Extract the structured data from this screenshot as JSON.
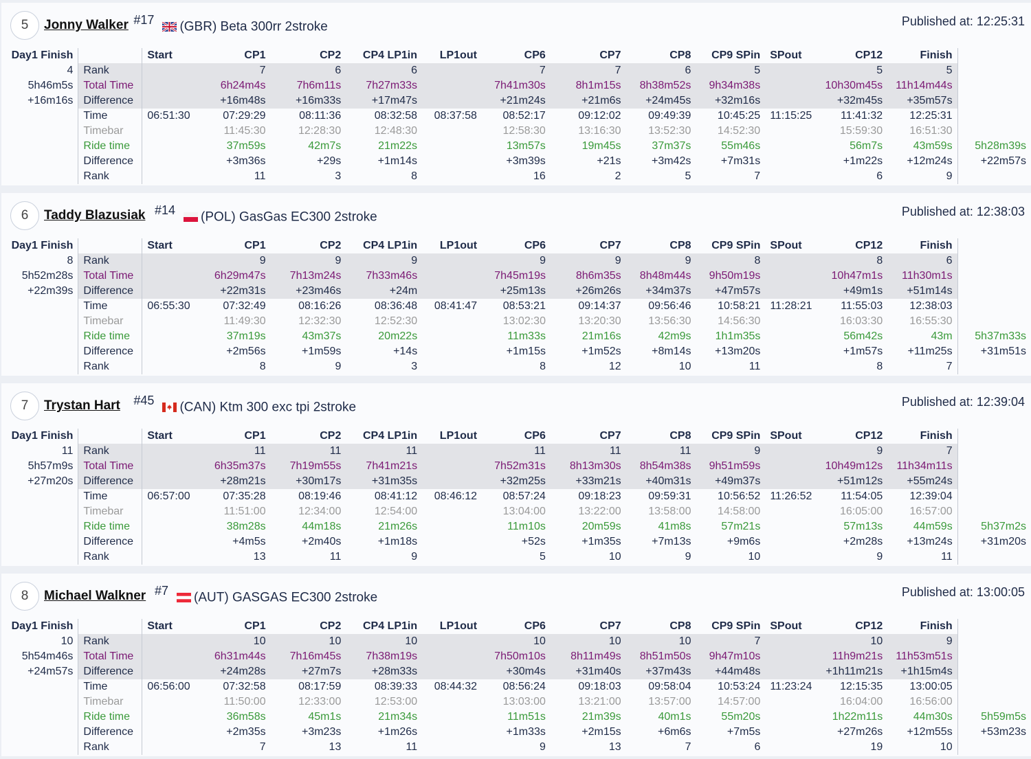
{
  "columns": [
    "Start",
    "CP1",
    "CP2",
    "CP4 LP1in",
    "LP1out",
    "CP6",
    "CP7",
    "CP8",
    "CP9 SPin",
    "SPout",
    "CP12",
    "Finish",
    ""
  ],
  "day1_header": "Day1 Finish",
  "published_label": "Published at: ",
  "row_labels": {
    "rank": "Rank",
    "total": "Total Time",
    "diff": "Difference",
    "time": "Time",
    "timebar": "Timebar",
    "ride": "Ride time",
    "diff2": "Difference",
    "rank2": "Rank"
  },
  "colors": {
    "purple": "#7b1a74",
    "green": "#3a9a3a",
    "grey": "#9a9a9a",
    "band": "#e2e3e7"
  },
  "riders": [
    {
      "position": "5",
      "name": "Jonny Walker",
      "number": "#17",
      "flag": "gb-flag-icon",
      "nation_bike": "(GBR) Beta 300rr 2stroke",
      "published": "12:25:31",
      "day1": [
        "4",
        "5h46m5s",
        "+16m16s"
      ],
      "rows": {
        "rank": [
          "",
          "7",
          "6",
          "6",
          "",
          "7",
          "7",
          "6",
          "5",
          "",
          "5",
          "5",
          ""
        ],
        "total": [
          "",
          "6h24m4s",
          "7h6m11s",
          "7h27m33s",
          "",
          "7h41m30s",
          "8h1m15s",
          "8h38m52s",
          "9h34m38s",
          "",
          "10h30m45s",
          "11h14m44s",
          ""
        ],
        "diff": [
          "",
          "+16m48s",
          "+16m33s",
          "+17m47s",
          "",
          "+21m24s",
          "+21m6s",
          "+24m45s",
          "+32m16s",
          "",
          "+32m45s",
          "+35m57s",
          ""
        ],
        "time": [
          "06:51:30",
          "07:29:29",
          "08:11:36",
          "08:32:58",
          "08:37:58",
          "08:52:17",
          "09:12:02",
          "09:49:39",
          "10:45:25",
          "11:15:25",
          "11:41:32",
          "12:25:31",
          ""
        ],
        "timebar": [
          "",
          "11:45:30",
          "12:28:30",
          "12:48:30",
          "",
          "12:58:30",
          "13:16:30",
          "13:52:30",
          "14:52:30",
          "",
          "15:59:30",
          "16:51:30",
          ""
        ],
        "ride": [
          "",
          "37m59s",
          "42m7s",
          "21m22s",
          "",
          "13m57s",
          "19m45s",
          "37m37s",
          "55m46s",
          "",
          "56m7s",
          "43m59s",
          "5h28m39s"
        ],
        "diff2": [
          "",
          "+3m36s",
          "+29s",
          "+1m14s",
          "",
          "+3m39s",
          "+21s",
          "+3m42s",
          "+7m31s",
          "",
          "+1m22s",
          "+12m24s",
          "+22m57s"
        ],
        "rank2": [
          "",
          "11",
          "3",
          "8",
          "",
          "16",
          "2",
          "5",
          "7",
          "",
          "6",
          "9",
          ""
        ]
      }
    },
    {
      "position": "6",
      "name": "Taddy Blazusiak",
      "number": "#14",
      "flag": "pl-flag-icon",
      "nation_bike": "(POL) GasGas EC300 2stroke",
      "published": "12:38:03",
      "day1": [
        "8",
        "5h52m28s",
        "+22m39s"
      ],
      "rows": {
        "rank": [
          "",
          "9",
          "9",
          "9",
          "",
          "9",
          "9",
          "9",
          "8",
          "",
          "8",
          "6",
          ""
        ],
        "total": [
          "",
          "6h29m47s",
          "7h13m24s",
          "7h33m46s",
          "",
          "7h45m19s",
          "8h6m35s",
          "8h48m44s",
          "9h50m19s",
          "",
          "10h47m1s",
          "11h30m1s",
          ""
        ],
        "diff": [
          "",
          "+22m31s",
          "+23m46s",
          "+24m",
          "",
          "+25m13s",
          "+26m26s",
          "+34m37s",
          "+47m57s",
          "",
          "+49m1s",
          "+51m14s",
          ""
        ],
        "time": [
          "06:55:30",
          "07:32:49",
          "08:16:26",
          "08:36:48",
          "08:41:47",
          "08:53:21",
          "09:14:37",
          "09:56:46",
          "10:58:21",
          "11:28:21",
          "11:55:03",
          "12:38:03",
          ""
        ],
        "timebar": [
          "",
          "11:49:30",
          "12:32:30",
          "12:52:30",
          "",
          "13:02:30",
          "13:20:30",
          "13:56:30",
          "14:56:30",
          "",
          "16:03:30",
          "16:55:30",
          ""
        ],
        "ride": [
          "",
          "37m19s",
          "43m37s",
          "20m22s",
          "",
          "11m33s",
          "21m16s",
          "42m9s",
          "1h1m35s",
          "",
          "56m42s",
          "43m",
          "5h37m33s"
        ],
        "diff2": [
          "",
          "+2m56s",
          "+1m59s",
          "+14s",
          "",
          "+1m15s",
          "+1m52s",
          "+8m14s",
          "+13m20s",
          "",
          "+1m57s",
          "+11m25s",
          "+31m51s"
        ],
        "rank2": [
          "",
          "8",
          "9",
          "3",
          "",
          "8",
          "12",
          "10",
          "11",
          "",
          "8",
          "7",
          ""
        ]
      }
    },
    {
      "position": "7",
      "name": "Trystan Hart",
      "number": "#45",
      "flag": "ca-flag-icon",
      "nation_bike": "(CAN) Ktm 300 exc tpi 2stroke",
      "published": "12:39:04",
      "day1": [
        "11",
        "5h57m9s",
        "+27m20s"
      ],
      "rows": {
        "rank": [
          "",
          "11",
          "11",
          "11",
          "",
          "11",
          "11",
          "11",
          "9",
          "",
          "9",
          "7",
          ""
        ],
        "total": [
          "",
          "6h35m37s",
          "7h19m55s",
          "7h41m21s",
          "",
          "7h52m31s",
          "8h13m30s",
          "8h54m38s",
          "9h51m59s",
          "",
          "10h49m12s",
          "11h34m11s",
          ""
        ],
        "diff": [
          "",
          "+28m21s",
          "+30m17s",
          "+31m35s",
          "",
          "+32m25s",
          "+33m21s",
          "+40m31s",
          "+49m37s",
          "",
          "+51m12s",
          "+55m24s",
          ""
        ],
        "time": [
          "06:57:00",
          "07:35:28",
          "08:19:46",
          "08:41:12",
          "08:46:12",
          "08:57:24",
          "09:18:23",
          "09:59:31",
          "10:56:52",
          "11:26:52",
          "11:54:05",
          "12:39:04",
          ""
        ],
        "timebar": [
          "",
          "11:51:00",
          "12:34:00",
          "12:54:00",
          "",
          "13:04:00",
          "13:22:00",
          "13:58:00",
          "14:58:00",
          "",
          "16:05:00",
          "16:57:00",
          ""
        ],
        "ride": [
          "",
          "38m28s",
          "44m18s",
          "21m26s",
          "",
          "11m10s",
          "20m59s",
          "41m8s",
          "57m21s",
          "",
          "57m13s",
          "44m59s",
          "5h37m2s"
        ],
        "diff2": [
          "",
          "+4m5s",
          "+2m40s",
          "+1m18s",
          "",
          "+52s",
          "+1m35s",
          "+7m13s",
          "+9m6s",
          "",
          "+2m28s",
          "+13m24s",
          "+31m20s"
        ],
        "rank2": [
          "",
          "13",
          "11",
          "9",
          "",
          "5",
          "10",
          "9",
          "10",
          "",
          "9",
          "11",
          ""
        ]
      }
    },
    {
      "position": "8",
      "name": "Michael Walkner",
      "number": "#7",
      "flag": "at-flag-icon",
      "nation_bike": "(AUT) GASGAS EC300 2stroke",
      "published": "13:00:05",
      "day1": [
        "10",
        "5h54m46s",
        "+24m57s"
      ],
      "rows": {
        "rank": [
          "",
          "10",
          "10",
          "10",
          "",
          "10",
          "10",
          "10",
          "7",
          "",
          "10",
          "9",
          ""
        ],
        "total": [
          "",
          "6h31m44s",
          "7h16m45s",
          "7h38m19s",
          "",
          "7h50m10s",
          "8h11m49s",
          "8h51m50s",
          "9h47m10s",
          "",
          "11h9m21s",
          "11h53m51s",
          ""
        ],
        "diff": [
          "",
          "+24m28s",
          "+27m7s",
          "+28m33s",
          "",
          "+30m4s",
          "+31m40s",
          "+37m43s",
          "+44m48s",
          "",
          "+1h11m21s",
          "+1h15m4s",
          ""
        ],
        "time": [
          "06:56:00",
          "07:32:58",
          "08:17:59",
          "08:39:33",
          "08:44:32",
          "08:56:24",
          "09:18:03",
          "09:58:04",
          "10:53:24",
          "11:23:24",
          "12:15:35",
          "13:00:05",
          ""
        ],
        "timebar": [
          "",
          "11:50:00",
          "12:33:00",
          "12:53:00",
          "",
          "13:03:00",
          "13:21:00",
          "13:57:00",
          "14:57:00",
          "",
          "16:04:00",
          "16:56:00",
          ""
        ],
        "ride": [
          "",
          "36m58s",
          "45m1s",
          "21m34s",
          "",
          "11m51s",
          "21m39s",
          "40m1s",
          "55m20s",
          "",
          "1h22m11s",
          "44m30s",
          "5h59m5s"
        ],
        "diff2": [
          "",
          "+2m35s",
          "+3m23s",
          "+1m26s",
          "",
          "+1m33s",
          "+2m15s",
          "+6m6s",
          "+7m5s",
          "",
          "+27m26s",
          "+12m55s",
          "+53m23s"
        ],
        "rank2": [
          "",
          "7",
          "13",
          "11",
          "",
          "9",
          "13",
          "7",
          "6",
          "",
          "19",
          "10",
          ""
        ]
      }
    }
  ]
}
